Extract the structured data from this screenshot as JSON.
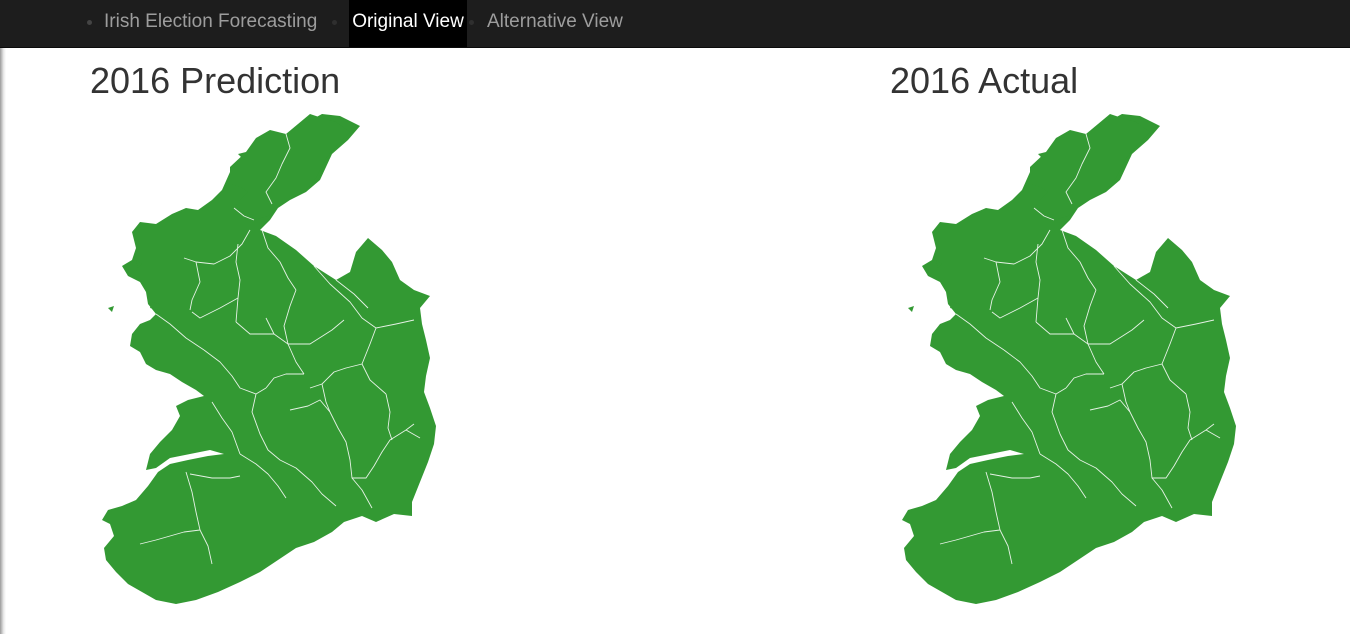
{
  "navbar": {
    "brand": "Irish Election Forecasting",
    "links": [
      {
        "label": "Original View",
        "active": true
      },
      {
        "label": "Alternative View",
        "active": false
      }
    ]
  },
  "panels": [
    {
      "title": "2016 Prediction"
    },
    {
      "title": "2016 Actual"
    }
  ],
  "colors": {
    "navbar_bg": "#1d1d1d",
    "active_tab_bg": "#000000",
    "map_fill": "#339933",
    "constituency_border": "#e6f2e6",
    "title_text": "#333333"
  }
}
